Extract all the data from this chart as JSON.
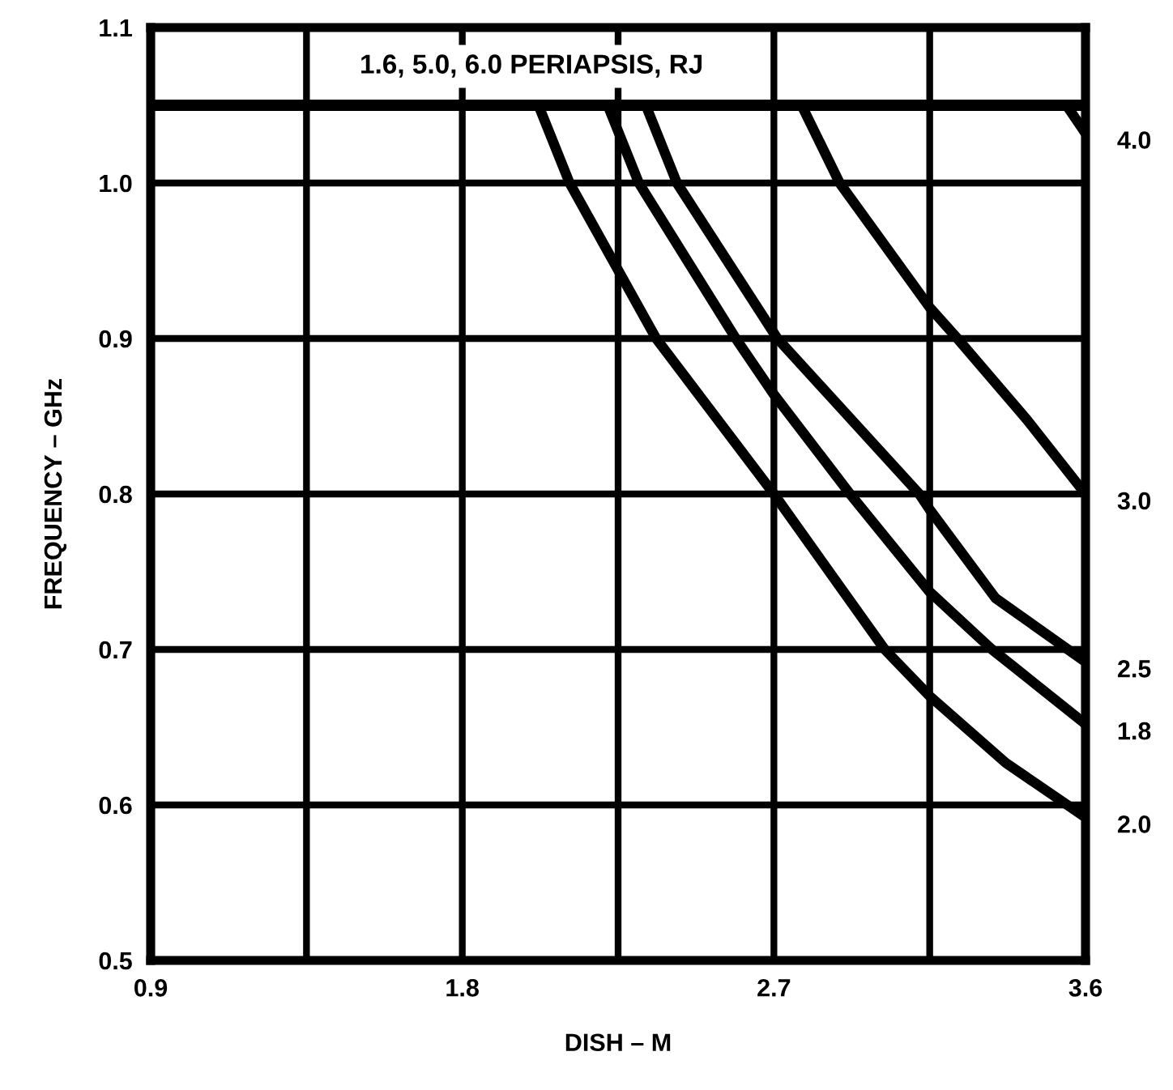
{
  "chart_data": {
    "type": "line",
    "xlabel": "DISH – M",
    "ylabel": "FREQUENCY – GHz",
    "annotations": [
      "1.6, 5.0, 6.0 PERIAPSIS, RJ"
    ],
    "xlim": [
      0.9,
      3.6
    ],
    "ylim": [
      0.5,
      1.1
    ],
    "xticks": [
      0.9,
      {
        "value": 1.35,
        "label": null
      },
      1.8,
      {
        "value": 2.25,
        "label": null
      },
      2.7,
      {
        "value": 3.15,
        "label": null
      },
      3.6
    ],
    "yticks": [
      0.5,
      0.6,
      0.7,
      0.8,
      0.9,
      {
        "value": 1.0,
        "label": "1.0"
      },
      1.1
    ],
    "grid": true,
    "line_style": "solid",
    "marker": "none",
    "ref_lines": [
      {
        "axis": "y",
        "value": 1.05,
        "label": null,
        "color": "#000000"
      }
    ],
    "series": [
      {
        "name": "2.0",
        "color": "#000000",
        "x": [
          2.02,
          2.11,
          2.25,
          2.36,
          2.7,
          3.02,
          3.15,
          3.37,
          3.6
        ],
        "values": [
          1.05,
          1.0,
          0.944,
          0.9,
          0.8,
          0.7,
          0.67,
          0.627,
          0.592
        ]
      },
      {
        "name": "1.8",
        "color": "#000000",
        "x": [
          2.22,
          2.31,
          2.59,
          2.7,
          2.92,
          3.15,
          3.33,
          3.6
        ],
        "values": [
          1.05,
          1.0,
          0.9,
          0.864,
          0.8,
          0.737,
          0.7,
          0.652
        ]
      },
      {
        "name": "2.5",
        "color": "#000000",
        "x": [
          2.33,
          2.42,
          2.71,
          3.12,
          3.15,
          3.34,
          3.6
        ],
        "values": [
          1.05,
          1.0,
          0.9,
          0.8,
          0.79,
          0.733,
          0.692
        ]
      },
      {
        "name": "3.0",
        "color": "#000000",
        "x": [
          2.78,
          2.89,
          3.15,
          3.23,
          3.43,
          3.6
        ],
        "values": [
          1.05,
          1.0,
          0.92,
          0.9,
          0.848,
          0.8
        ]
      },
      {
        "name": "4.0",
        "color": "#000000",
        "x": [
          3.545,
          3.6
        ],
        "values": [
          1.05,
          1.032
        ]
      }
    ]
  }
}
